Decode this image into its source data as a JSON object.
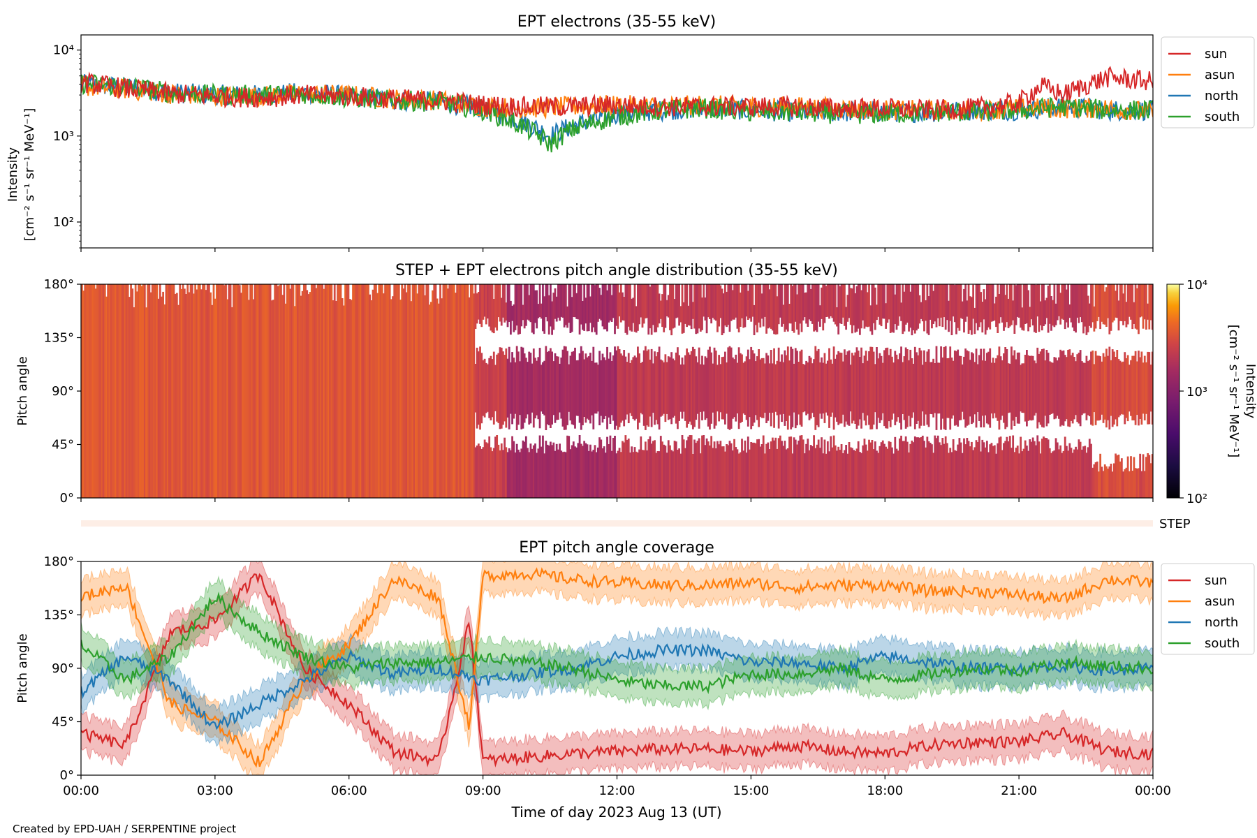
{
  "footer": {
    "credit": "Created by EPD-UAH / SERPENTINE project"
  },
  "chart_data": [
    {
      "type": "line",
      "title": "EPT electrons (35-55 keV)",
      "ylabel": "Intensity",
      "yunit": "[cm⁻² s⁻¹ sr⁻¹ MeV⁻¹]",
      "yscale": "log",
      "ylim": [
        50,
        15000
      ],
      "yticks": [
        "10²",
        "10³",
        "10⁴"
      ],
      "xlim": [
        0,
        24
      ],
      "legend_position": "outside-right-top",
      "series": [
        {
          "name": "sun",
          "color": "#d62728",
          "x": [
            0,
            1,
            2,
            3,
            4,
            5,
            6,
            7,
            8,
            9,
            10,
            11,
            12,
            13,
            14,
            15,
            16,
            17,
            18,
            19,
            20,
            21,
            21.5,
            22,
            23,
            24
          ],
          "values": [
            4200,
            3600,
            3100,
            2900,
            2800,
            3000,
            2900,
            2700,
            2600,
            2300,
            2200,
            2200,
            2300,
            2200,
            2200,
            2200,
            2200,
            2100,
            2100,
            2000,
            2100,
            2400,
            3800,
            3000,
            4800,
            4300
          ]
        },
        {
          "name": "asun",
          "color": "#ff7f0e",
          "x": [
            0,
            1,
            2,
            3,
            4,
            5,
            6,
            7,
            8,
            9,
            10,
            11,
            12,
            13,
            14,
            15,
            16,
            17,
            18,
            19,
            20,
            21,
            22,
            23,
            24
          ],
          "values": [
            3800,
            3500,
            3100,
            2900,
            2900,
            3100,
            3000,
            2700,
            2600,
            2200,
            2100,
            2200,
            2300,
            2200,
            2300,
            2200,
            2200,
            2100,
            2000,
            2000,
            2000,
            2100,
            2100,
            2100,
            1900
          ]
        },
        {
          "name": "north",
          "color": "#1f77b4",
          "x": [
            0,
            1,
            2,
            3,
            4,
            5,
            6,
            7,
            8,
            9,
            10,
            10.5,
            11,
            12,
            13,
            14,
            15,
            16,
            17,
            18,
            19,
            20,
            21,
            22,
            23,
            24
          ],
          "values": [
            4000,
            3700,
            3200,
            3000,
            3000,
            3200,
            2900,
            2600,
            2500,
            2100,
            1400,
            1000,
            1300,
            1800,
            2000,
            2100,
            2000,
            1900,
            1900,
            1900,
            1900,
            2000,
            2000,
            2200,
            2000,
            2000
          ]
        },
        {
          "name": "south",
          "color": "#2ca02c",
          "x": [
            0,
            1,
            2,
            3,
            4,
            5,
            6,
            7,
            8,
            9,
            10,
            10.5,
            11,
            12,
            13,
            14,
            15,
            16,
            17,
            18,
            19,
            20,
            21,
            22,
            23,
            24
          ],
          "values": [
            4100,
            3800,
            3200,
            3000,
            3000,
            3100,
            2800,
            2600,
            2500,
            2000,
            1200,
            800,
            1200,
            1700,
            2000,
            2100,
            1900,
            1900,
            1800,
            1800,
            1900,
            1900,
            2000,
            2200,
            2000,
            2000
          ]
        }
      ]
    },
    {
      "type": "heatmap",
      "title": "STEP + EPT electrons pitch angle distribution (35-55 keV)",
      "ylabel": "Pitch angle",
      "ylim": [
        0,
        180
      ],
      "yticks": [
        "0°",
        "45°",
        "90°",
        "135°",
        "180°"
      ],
      "xlim": [
        0,
        24
      ],
      "colorbar": {
        "label": "Intensity",
        "unit": "[cm⁻² s⁻¹ sr⁻¹ MeV⁻¹]",
        "scale": "log",
        "range": [
          100,
          10000
        ],
        "ticks": [
          "10²",
          "10³",
          "10⁴"
        ]
      },
      "step_label": "STEP",
      "bands": [
        {
          "from": 0,
          "to": 8.8,
          "pa_ranges": [
            [
              0,
              180
            ]
          ],
          "intensity": 3500
        },
        {
          "from": 8.8,
          "to": 9.5,
          "pa_ranges": [
            [
              0,
              45
            ],
            [
              65,
              120
            ],
            [
              145,
              180
            ]
          ],
          "intensity": 2500
        },
        {
          "from": 9.5,
          "to": 12,
          "pa_ranges": [
            [
              0,
              45
            ],
            [
              65,
              120
            ],
            [
              145,
              180
            ]
          ],
          "intensity": 1500
        },
        {
          "from": 12,
          "to": 22.6,
          "pa_ranges": [
            [
              0,
              45
            ],
            [
              65,
              120
            ],
            [
              145,
              180
            ]
          ],
          "intensity": 2200
        },
        {
          "from": 22.6,
          "to": 24,
          "pa_ranges": [
            [
              0,
              30
            ],
            [
              65,
              120
            ],
            [
              145,
              180
            ]
          ],
          "intensity": 3000
        }
      ]
    },
    {
      "type": "line",
      "title": "EPT pitch angle coverage",
      "ylabel": "Pitch angle",
      "xlabel": "Time of day 2023 Aug 13 (UT)",
      "ylim": [
        0,
        180
      ],
      "yticks": [
        "0°",
        "45°",
        "90°",
        "135°",
        "180°"
      ],
      "xlim": [
        0,
        24
      ],
      "xticks": [
        "00:00",
        "03:00",
        "06:00",
        "09:00",
        "12:00",
        "15:00",
        "18:00",
        "21:00",
        "00:00"
      ],
      "legend_position": "outside-right-top",
      "band_halfwidth_deg": 15,
      "series": [
        {
          "name": "sun",
          "color": "#d62728",
          "x": [
            0,
            1,
            2,
            3,
            4,
            5,
            6,
            7,
            8,
            8.7,
            9,
            10,
            11,
            12,
            13,
            14,
            15,
            16,
            17,
            18,
            19,
            20,
            21,
            22,
            23,
            24
          ],
          "values": [
            35,
            25,
            120,
            130,
            170,
            90,
            60,
            20,
            12,
            130,
            12,
            15,
            18,
            20,
            22,
            22,
            20,
            25,
            20,
            18,
            25,
            28,
            28,
            35,
            20,
            18
          ]
        },
        {
          "name": "asun",
          "color": "#ff7f0e",
          "x": [
            0,
            1,
            2,
            3,
            4,
            5,
            6,
            7,
            8,
            8.7,
            9,
            10,
            11,
            12,
            13,
            14,
            15,
            16,
            17,
            18,
            19,
            20,
            21,
            22,
            23,
            24
          ],
          "values": [
            150,
            160,
            60,
            45,
            10,
            80,
            110,
            165,
            150,
            40,
            168,
            170,
            165,
            162,
            160,
            160,
            162,
            158,
            160,
            160,
            155,
            155,
            152,
            148,
            165,
            162
          ]
        },
        {
          "name": "north",
          "color": "#1f77b4",
          "x": [
            0,
            1,
            2,
            3,
            4,
            5,
            6,
            7,
            8,
            9,
            10,
            11,
            12,
            13,
            14,
            15,
            16,
            17,
            18,
            19,
            20,
            21,
            22,
            23,
            24
          ],
          "values": [
            70,
            100,
            80,
            40,
            60,
            80,
            100,
            85,
            90,
            80,
            85,
            90,
            100,
            105,
            105,
            95,
            95,
            90,
            100,
            95,
            90,
            90,
            92,
            88,
            90
          ]
        },
        {
          "name": "south",
          "color": "#2ca02c",
          "x": [
            0,
            1,
            2,
            3,
            4,
            5,
            6,
            7,
            8,
            9,
            10,
            11,
            12,
            13,
            14,
            15,
            16,
            17,
            18,
            19,
            20,
            21,
            22,
            23,
            24
          ],
          "values": [
            110,
            80,
            100,
            150,
            120,
            100,
            90,
            95,
            95,
            100,
            95,
            90,
            80,
            75,
            75,
            85,
            85,
            90,
            80,
            85,
            90,
            88,
            95,
            92,
            90
          ]
        }
      ]
    }
  ]
}
